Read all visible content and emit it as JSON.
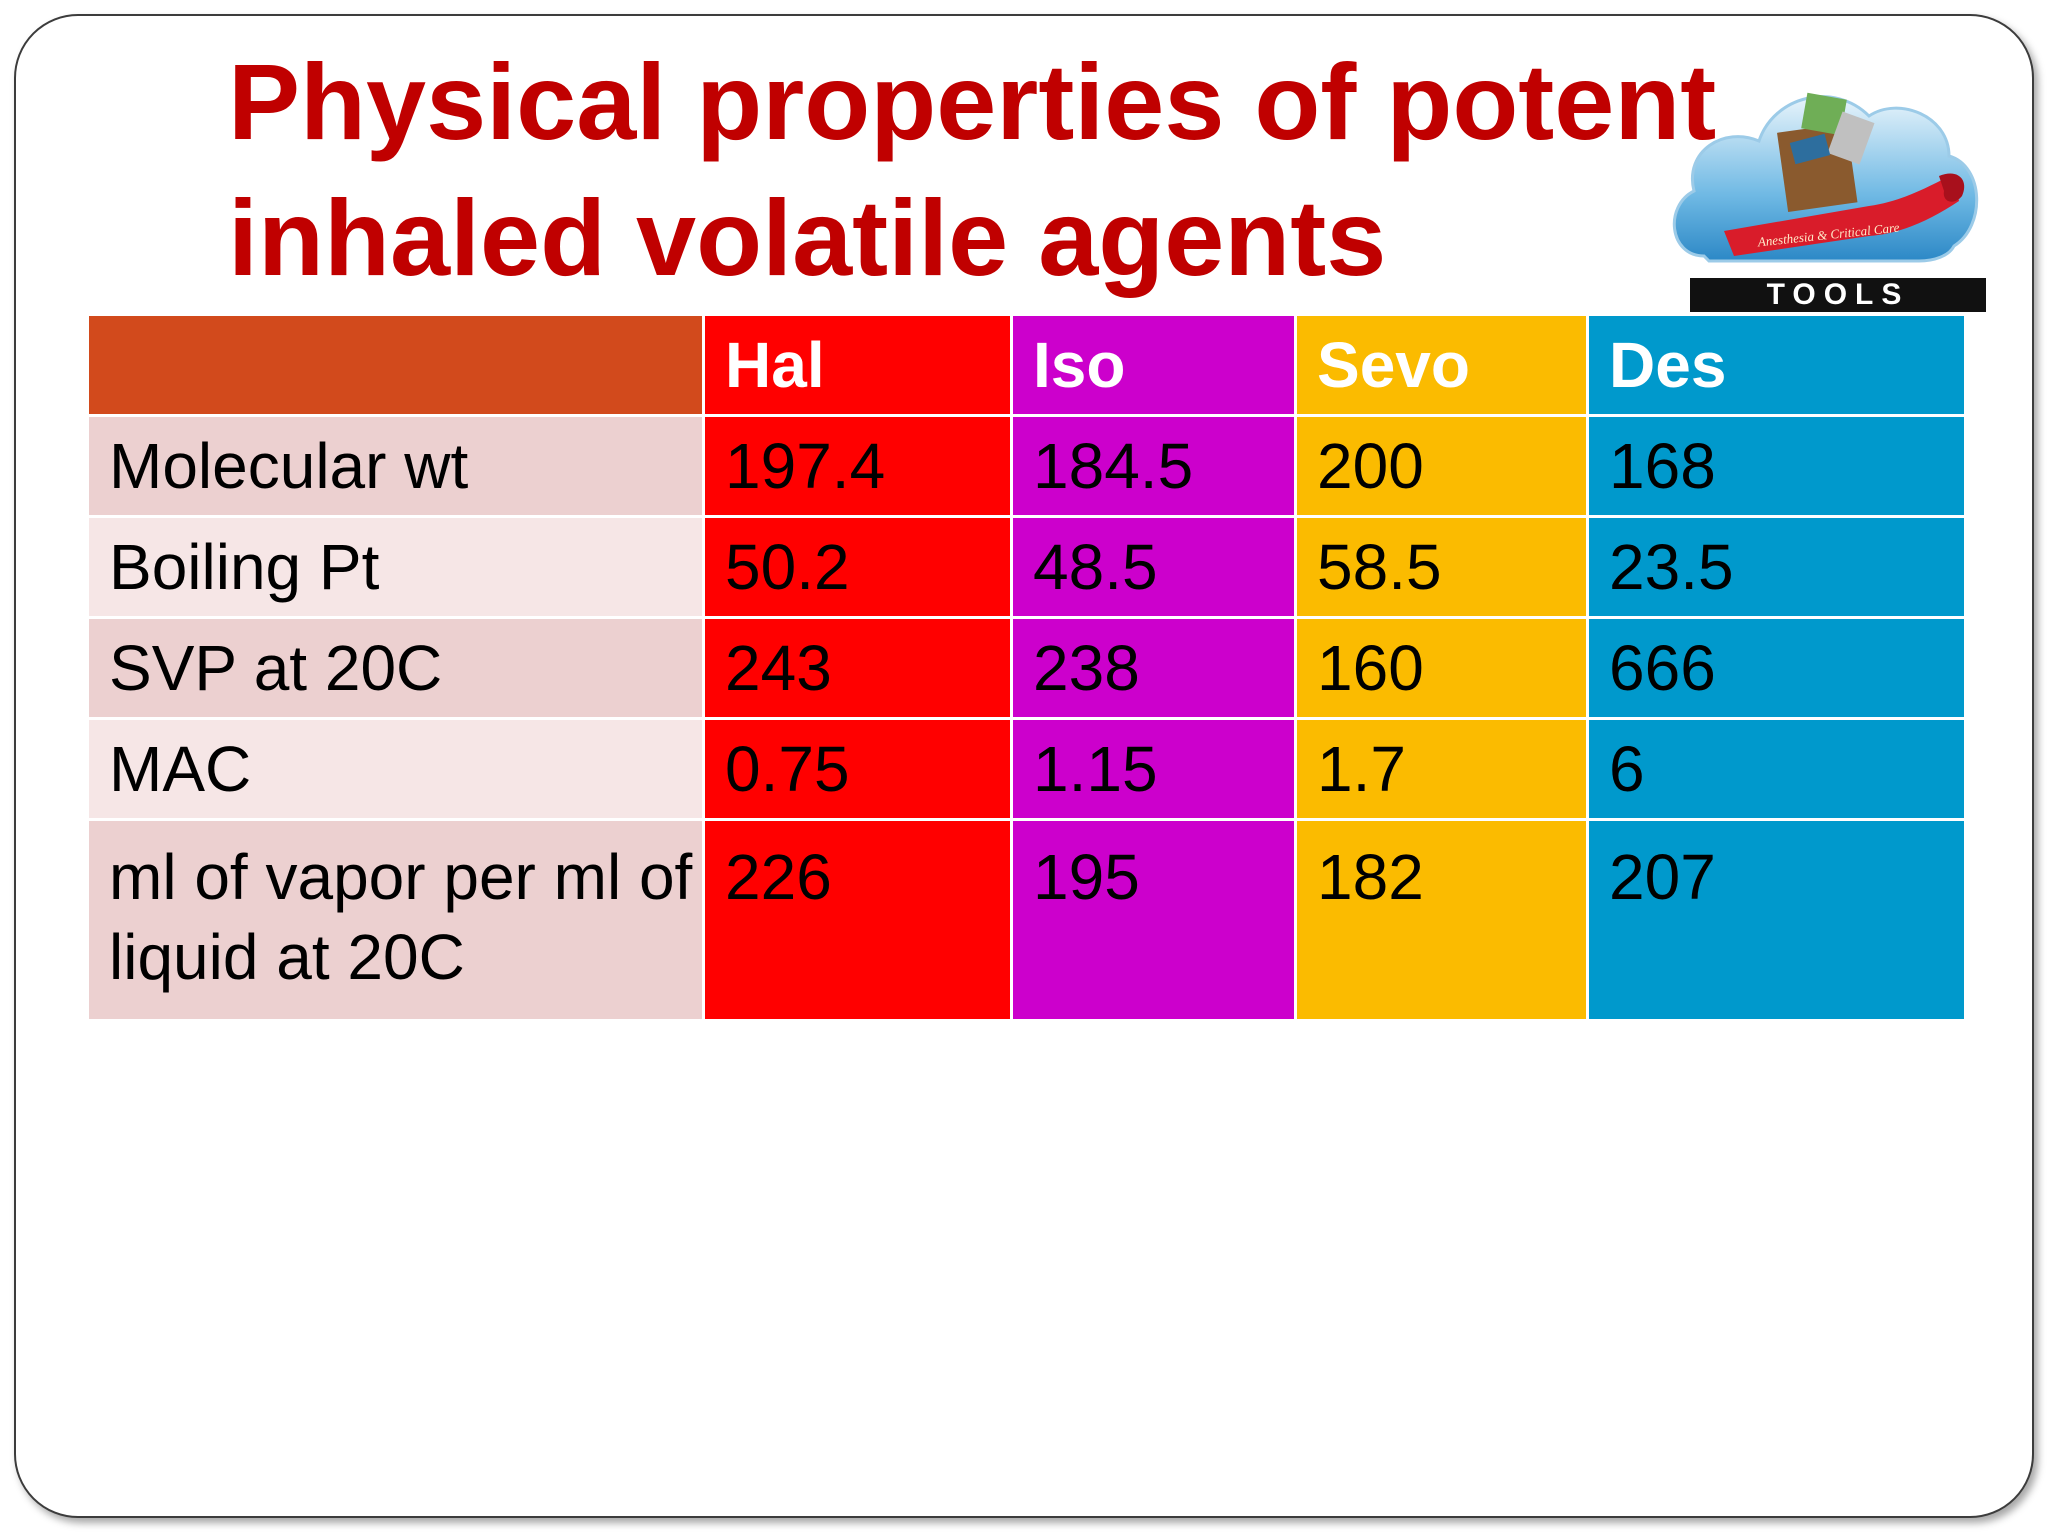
{
  "slide": {
    "title_line1": "Physical properties of potent",
    "title_line2": "inhaled volatile agents"
  },
  "logo": {
    "word": "TOOLS",
    "tagline": "Anesthesia & Critical Care"
  },
  "colors": {
    "title": "#c00000",
    "header_label": "#d24a1c",
    "hal": "#ff0000",
    "iso": "#cc00cc",
    "sevo": "#fbbb00",
    "des": "#0099cc",
    "label_odd": "#ecd0d0",
    "label_even": "#f6e6e6"
  },
  "table": {
    "headers": [
      "",
      "Hal",
      "Iso",
      "Sevo",
      "Des"
    ],
    "rows": [
      {
        "label": "Molecular wt",
        "hal": "197.4",
        "iso": "184.5",
        "sevo": "200",
        "des": "168"
      },
      {
        "label": "Boiling Pt",
        "hal": "50.2",
        "iso": "48.5",
        "sevo": "58.5",
        "des": "23.5"
      },
      {
        "label": "SVP at 20C",
        "hal": "243",
        "iso": "238",
        "sevo": "160",
        "des": "666"
      },
      {
        "label": "MAC",
        "hal": "0.75",
        "iso": "1.15",
        "sevo": "1.7",
        "des": "6"
      },
      {
        "label": "ml of vapor per ml of liquid at 20C",
        "hal": "226",
        "iso": "195",
        "sevo": "182",
        "des": "207"
      }
    ]
  }
}
